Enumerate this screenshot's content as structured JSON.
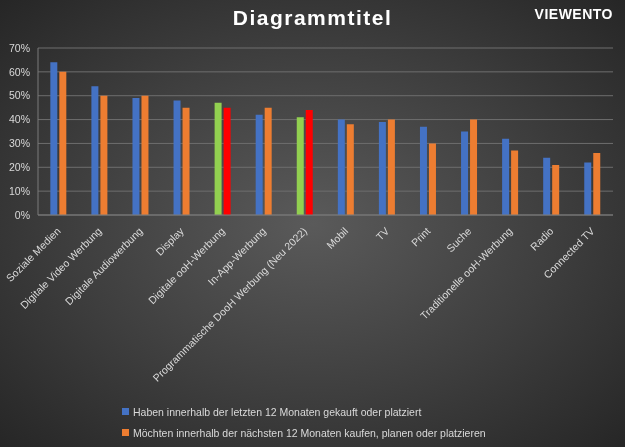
{
  "chart_data": {
    "type": "bar",
    "title": "Diagrammtitel",
    "categories": [
      "Soziale Medien",
      "Digitale Video Werbung",
      "Digitale Audiowerbung",
      "Display",
      "Digitale ooH-Werbung",
      "In-App-Werbung",
      "Programmatische DooH Werbung (Neu 2022)",
      "Mobil",
      "TV",
      "Print",
      "Suche",
      "Traditionelle ooH-Werbung",
      "Radio",
      "Connected TV"
    ],
    "series": [
      {
        "name": "Haben innerhalb der letzten 12 Monaten gekauft oder platziert",
        "color": "#4472c4",
        "colors": [
          "#4472c4",
          "#4472c4",
          "#4472c4",
          "#4472c4",
          "#92d050",
          "#4472c4",
          "#92d050",
          "#4472c4",
          "#4472c4",
          "#4472c4",
          "#4472c4",
          "#4472c4",
          "#4472c4",
          "#4472c4"
        ],
        "values": [
          64,
          54,
          49,
          48,
          47,
          42,
          41,
          40,
          39,
          37,
          35,
          32,
          24,
          22
        ]
      },
      {
        "name": "Möchten innerhalb der nächsten 12 Monaten kaufen, planen oder platzieren",
        "color": "#ed7d31",
        "colors": [
          "#ed7d31",
          "#ed7d31",
          "#ed7d31",
          "#ed7d31",
          "#ff0000",
          "#ed7d31",
          "#ff0000",
          "#ed7d31",
          "#ed7d31",
          "#ed7d31",
          "#ed7d31",
          "#ed7d31",
          "#ed7d31",
          "#ed7d31"
        ],
        "values": [
          60,
          50,
          50,
          45,
          45,
          45,
          44,
          38,
          40,
          30,
          40,
          27,
          21,
          26
        ]
      }
    ],
    "ylim": [
      0,
      70
    ],
    "yticks": [
      {
        "value": 0,
        "label": "0%"
      },
      {
        "value": 10,
        "label": "10%"
      },
      {
        "value": 20,
        "label": "20%"
      },
      {
        "value": 30,
        "label": "30%"
      },
      {
        "value": 40,
        "label": "40%"
      },
      {
        "value": 50,
        "label": "50%"
      },
      {
        "value": 60,
        "label": "60%"
      },
      {
        "value": 70,
        "label": "70%"
      }
    ],
    "grid": true,
    "legend": "bottom"
  },
  "logo": "VIEWENTO"
}
